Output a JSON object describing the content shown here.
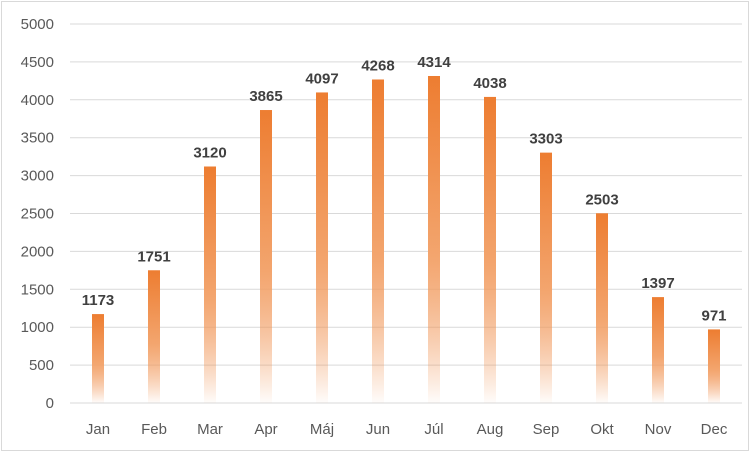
{
  "chart_data": {
    "type": "bar",
    "title": "",
    "xlabel": "",
    "ylabel": "",
    "categories": [
      "Jan",
      "Feb",
      "Mar",
      "Apr",
      "Máj",
      "Jun",
      "Júl",
      "Aug",
      "Sep",
      "Okt",
      "Nov",
      "Dec"
    ],
    "values": [
      1173,
      1751,
      3120,
      3865,
      4097,
      4268,
      4314,
      4038,
      3303,
      2503,
      1397,
      971
    ],
    "ylim": [
      0,
      5000
    ],
    "yticks": [
      "0",
      "500",
      "1000",
      "1500",
      "2000",
      "2500",
      "3000",
      "3500",
      "4000",
      "4500",
      "5000"
    ],
    "grid": true,
    "legend": "none",
    "bar_color": "#ED7D31",
    "bar_fill": "gradient fading to white at base",
    "data_labels": true
  }
}
